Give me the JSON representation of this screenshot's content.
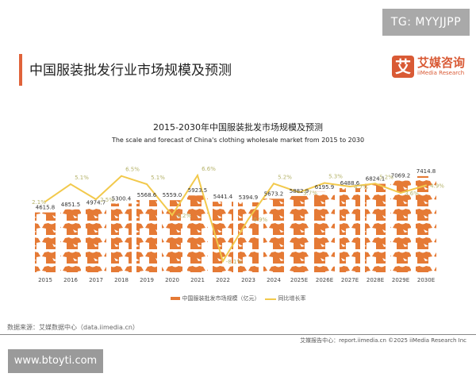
{
  "watermark_top": "TG: MYYJJPP",
  "page_title": "中国服装批发行业市场规模及预测",
  "logo": {
    "mark": "艾",
    "cn": "艾媒咨询",
    "en": "iiMedia Research"
  },
  "source": "数据来源：艾媒数据中心（data.iimedia.cn）",
  "footer": "艾媒报告中心：report.iimedia.cn    ©2025  iiMedia Research  Inc",
  "watermark_bottom": "www.btoyti.com",
  "colors": {
    "bar": "#e57a35",
    "line": "#f2c94c",
    "accent": "#e0633a"
  },
  "chart_data": {
    "type": "bar",
    "title": "2015-2030年中国服装批发市场规模及预测",
    "subtitle": "The scale and forecast of China's clothing wholesale market from 2015 to 2030",
    "categories": [
      "2015",
      "2016",
      "2017",
      "2018",
      "2019",
      "2020",
      "2021",
      "2022",
      "2023",
      "2024",
      "2025E",
      "2026E",
      "2027E",
      "2028E",
      "2029E",
      "2030E"
    ],
    "series": [
      {
        "name": "中国服装批发市场规模（亿元）",
        "type": "pictograph-bar",
        "values": [
          4615.8,
          4851.5,
          4974.7,
          5300.4,
          5568.6,
          5559.0,
          5923.5,
          5441.4,
          5394.9,
          5673.2,
          5882.9,
          6195.9,
          6488.6,
          6824.1,
          7069.2,
          7414.8
        ],
        "labels": [
          "4615.8",
          "4851.5",
          "4974.7",
          "5300.4",
          "5568.6",
          "5559.0",
          "5923.5",
          "5441.4",
          "5394.9",
          "5673.2",
          "5882.9",
          "6195.9",
          "6488.6",
          "6824.1",
          "7069.2",
          "7414.8"
        ]
      },
      {
        "name": "同比增长率",
        "type": "line",
        "values": [
          2.1,
          5.1,
          2.5,
          6.5,
          5.1,
          -0.2,
          6.6,
          -8.1,
          -0.9,
          5.2,
          3.7,
          5.3,
          4.7,
          5.2,
          3.6,
          4.9
        ],
        "labels": [
          "2.1%",
          "5.1%",
          "2.5%",
          "6.5%",
          "5.1%",
          "-0.2%",
          "6.6%",
          "-8.1%",
          "-0.9%",
          "5.2%",
          "3.7%",
          "5.3%",
          "4.7%",
          "5.2%",
          "3.6%",
          "4.9%"
        ]
      }
    ],
    "ylim_left": [
      0,
      9000
    ],
    "ylim_right": [
      -10,
      10
    ],
    "grid": false,
    "legend": "bottom"
  }
}
